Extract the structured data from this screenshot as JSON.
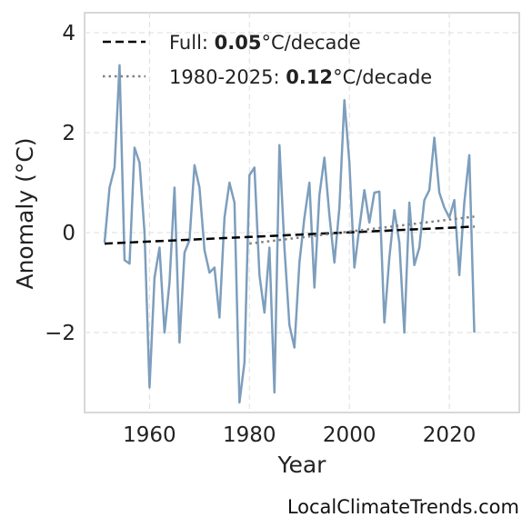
{
  "chart_data": {
    "type": "line",
    "xlabel": "Year",
    "ylabel": "Anomaly (°C)",
    "xlim": [
      1947,
      2034
    ],
    "ylim": [
      -3.6,
      4.4
    ],
    "xticks": [
      1960,
      1980,
      2000,
      2020
    ],
    "yticks": [
      4,
      2,
      0,
      -2
    ],
    "ytick_labels": [
      "4",
      "2",
      "0",
      "−2"
    ],
    "grid": true,
    "legend_position": "top-left",
    "series": [
      {
        "color": "#7d9ebd",
        "style": "solid",
        "x": [
          1951,
          1952,
          1953,
          1954,
          1955,
          1956,
          1957,
          1958,
          1959,
          1960,
          1961,
          1962,
          1963,
          1964,
          1965,
          1966,
          1967,
          1968,
          1969,
          1970,
          1971,
          1972,
          1973,
          1974,
          1975,
          1976,
          1977,
          1978,
          1979,
          1980,
          1981,
          1982,
          1983,
          1984,
          1985,
          1986,
          1987,
          1988,
          1989,
          1990,
          1991,
          1992,
          1993,
          1994,
          1995,
          1996,
          1997,
          1998,
          1999,
          2000,
          2001,
          2002,
          2003,
          2004,
          2005,
          2006,
          2007,
          2008,
          2009,
          2010,
          2011,
          2012,
          2013,
          2014,
          2015,
          2016,
          2017,
          2018,
          2019,
          2020,
          2021,
          2022,
          2023,
          2024,
          2025
        ],
        "values": [
          -0.2,
          0.9,
          1.3,
          3.35,
          -0.55,
          -0.62,
          1.7,
          1.4,
          0.0,
          -3.1,
          -0.9,
          -0.3,
          -2.0,
          -1.0,
          0.9,
          -2.2,
          -0.4,
          -0.15,
          1.35,
          0.9,
          -0.35,
          -0.8,
          -0.7,
          -1.7,
          0.3,
          1.0,
          0.6,
          -3.4,
          -2.6,
          1.15,
          1.3,
          -0.85,
          -1.6,
          -0.3,
          -3.2,
          1.75,
          -0.3,
          -1.85,
          -2.3,
          -0.6,
          0.3,
          1.0,
          -1.1,
          0.75,
          1.5,
          0.35,
          -0.6,
          0.5,
          2.65,
          1.4,
          -0.7,
          0.1,
          0.85,
          0.2,
          0.8,
          0.82,
          -1.8,
          -0.5,
          0.45,
          -0.2,
          -2.0,
          0.6,
          -0.65,
          -0.3,
          0.65,
          0.85,
          1.9,
          0.8,
          0.5,
          0.3,
          0.65,
          -0.85,
          0.6,
          1.55,
          -2.0
        ]
      },
      {
        "name": "Full:",
        "rate": "0.05",
        "unit": "°C/decade",
        "color": "#000000",
        "style": "dashed",
        "x": [
          1951,
          2025
        ],
        "values": [
          -0.22,
          0.12
        ]
      },
      {
        "name": "1980-2025:",
        "rate": "0.12",
        "unit": "°C/decade",
        "color": "#808080",
        "style": "dotted",
        "x": [
          1980,
          2025
        ],
        "values": [
          -0.22,
          0.32
        ]
      }
    ]
  },
  "source_text": "LocalClimateTrends.com"
}
